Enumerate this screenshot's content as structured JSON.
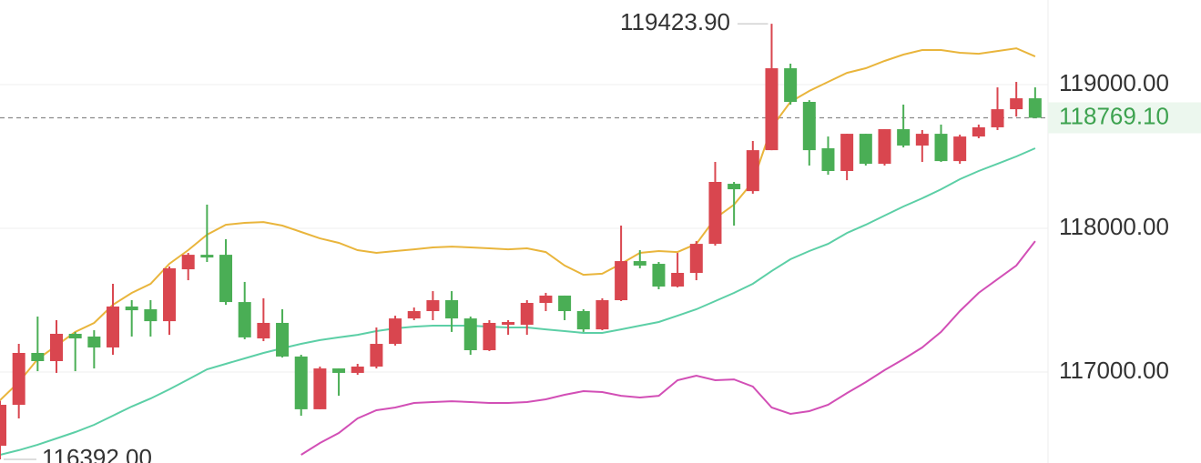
{
  "chart_data": {
    "type": "candlestick",
    "up_color": "#d9464f",
    "down_color": "#4aae55",
    "open": [
      116487,
      116772,
      117133,
      117076,
      117266,
      117247,
      117171,
      117456,
      117437,
      117354,
      117715,
      117816,
      117816,
      117487,
      117234,
      117342,
      117108,
      116741,
      117025,
      116994,
      117038,
      117196,
      117373,
      117424,
      117500,
      117373,
      117152,
      117329,
      117329,
      117481,
      117532,
      117424,
      117297,
      117500,
      117772,
      117753,
      117595,
      117690,
      117892,
      118310,
      118259,
      118544,
      119114,
      118880,
      118557,
      118399,
      118658,
      118449,
      118690,
      118576,
      118658,
      118468,
      118639,
      118703,
      118829,
      118905
    ],
    "high": [
      116800,
      117196,
      117386,
      117361,
      117279,
      117291,
      117614,
      117500,
      117500,
      117734,
      117829,
      118165,
      117924,
      117627,
      117513,
      117437,
      117120,
      117038,
      117025,
      117057,
      117310,
      117392,
      117449,
      117563,
      117563,
      117386,
      117361,
      117361,
      117500,
      117551,
      117532,
      117437,
      117513,
      118019,
      117848,
      117766,
      117829,
      117911,
      118462,
      118323,
      118608,
      119423.9,
      119146,
      118892,
      118639,
      118658,
      118658,
      118690,
      118861,
      118684,
      118722,
      118652,
      118722,
      118981,
      119019,
      118981
    ],
    "low": [
      116392,
      116677,
      117006,
      116994,
      117006,
      117025,
      117120,
      117247,
      117247,
      117259,
      117639,
      117766,
      117468,
      117228,
      117215,
      117101,
      116696,
      116741,
      116835,
      116981,
      117025,
      117184,
      117361,
      117361,
      117279,
      117120,
      117146,
      117259,
      117259,
      117424,
      117361,
      117279,
      117291,
      117494,
      117722,
      117576,
      117589,
      117639,
      117880,
      118019,
      118241,
      118544,
      118861,
      118437,
      118373,
      118335,
      118437,
      118437,
      118563,
      118462,
      118462,
      118449,
      118627,
      118684,
      118778,
      118766
    ],
    "close": [
      116772,
      117133,
      117076,
      117266,
      117234,
      117171,
      117456,
      117430,
      117354,
      117722,
      117816,
      117797,
      117487,
      117241,
      117342,
      117108,
      116741,
      117025,
      116994,
      117038,
      117196,
      117373,
      117424,
      117500,
      117373,
      117152,
      117342,
      117348,
      117481,
      117532,
      117424,
      117297,
      117500,
      117772,
      117741,
      117595,
      117690,
      117892,
      118323,
      118272,
      118544,
      119114,
      118880,
      118544,
      118399,
      118658,
      118449,
      118690,
      118576,
      118658,
      118468,
      118639,
      118703,
      118829,
      118905,
      118769.1
    ],
    "lines": [
      {
        "color": "#e9b53c",
        "values": [
          116804,
          116930,
          117089,
          117184,
          117279,
          117342,
          117468,
          117551,
          117614,
          117753,
          117848,
          117956,
          118025,
          118038,
          118044,
          118019,
          117975,
          117930,
          117899,
          117848,
          117829,
          117842,
          117854,
          117867,
          117873,
          117867,
          117861,
          117854,
          117861,
          117835,
          117741,
          117677,
          117684,
          117753,
          117829,
          117842,
          117835,
          117892,
          118070,
          118165,
          118323,
          118703,
          118880,
          118956,
          119019,
          119082,
          119114,
          119165,
          119209,
          119241,
          119241,
          119222,
          119215,
          119234,
          119253,
          119196
        ]
      },
      {
        "color": "#5ccfa6",
        "values": [
          116424,
          116456,
          116494,
          116538,
          116582,
          116633,
          116696,
          116760,
          116816,
          116880,
          116949,
          117019,
          117057,
          117095,
          117133,
          117165,
          117196,
          117222,
          117241,
          117259,
          117285,
          117304,
          117316,
          117323,
          117323,
          117323,
          117316,
          117310,
          117310,
          117297,
          117285,
          117272,
          117272,
          117297,
          117323,
          117348,
          117392,
          117437,
          117494,
          117551,
          117614,
          117703,
          117785,
          117842,
          117892,
          117968,
          118025,
          118089,
          118152,
          118209,
          118272,
          118342,
          118399,
          118449,
          118500,
          118557
        ]
      },
      {
        "color": "#d24fb6",
        "values": [
          null,
          null,
          null,
          null,
          null,
          null,
          null,
          null,
          null,
          null,
          null,
          null,
          null,
          null,
          null,
          null,
          116424,
          116506,
          116576,
          116677,
          116734,
          116753,
          116785,
          116791,
          116797,
          116791,
          116785,
          116785,
          116791,
          116810,
          116842,
          116867,
          116861,
          116835,
          116823,
          116835,
          116943,
          116975,
          116943,
          116949,
          116899,
          116753,
          116709,
          116728,
          116772,
          116854,
          116930,
          117013,
          117089,
          117171,
          117279,
          117424,
          117551,
          117646,
          117741,
          117911
        ]
      }
    ],
    "ylim": [
      116367,
      119589
    ],
    "yticks": [
      {
        "value": 117000,
        "label": "117000.00"
      },
      {
        "value": 118000,
        "label": "118000.00"
      },
      {
        "value": 119000,
        "label": "119000.00"
      }
    ],
    "grid": true,
    "max_label": {
      "value": 119423.9,
      "label": "119423.90"
    },
    "min_label": {
      "value": 116392,
      "label": "116392.00"
    },
    "last_price": {
      "value": 118769.1,
      "label": "118769.10"
    }
  }
}
